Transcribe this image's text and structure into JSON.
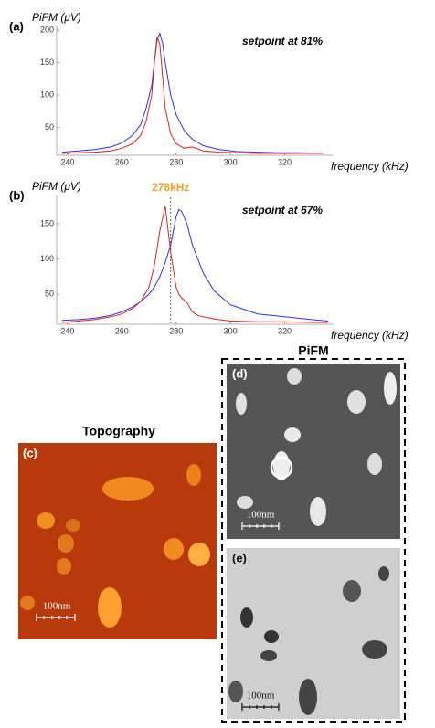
{
  "chart_data": [
    {
      "type": "line",
      "panel": "(a)",
      "ylabel": "PiFM (μV)",
      "title": "setpoint at 81%",
      "xlabel": "frequency (kHz)",
      "x": [
        238,
        244,
        250,
        256,
        260,
        264,
        267,
        269,
        271,
        272,
        273,
        274,
        275,
        276,
        278,
        280,
        283,
        286,
        290,
        296,
        302,
        310,
        318,
        326,
        334
      ],
      "series": [
        {
          "color": "#3030e0",
          "values": [
            12,
            14,
            16,
            20,
            26,
            38,
            55,
            80,
            115,
            150,
            185,
            195,
            180,
            150,
            100,
            70,
            45,
            32,
            22,
            16,
            13,
            12,
            11,
            11,
            10
          ]
        },
        {
          "color": "#e02020",
          "values": [
            10,
            11,
            12,
            14,
            18,
            25,
            38,
            60,
            100,
            150,
            190,
            178,
            130,
            80,
            40,
            25,
            18,
            20,
            14,
            12,
            11,
            10,
            10,
            10,
            10
          ]
        }
      ],
      "xlim": [
        236,
        338
      ],
      "ylim": [
        10,
        200
      ],
      "xticks": [
        240,
        260,
        280,
        300,
        320
      ],
      "yticks": [
        50,
        100,
        150,
        200
      ]
    },
    {
      "type": "line",
      "panel": "(b)",
      "ylabel": "PiFM (μV)",
      "title": "setpoint at 67%",
      "xlabel": "frequency (kHz)",
      "x": [
        238,
        244,
        250,
        256,
        260,
        264,
        267,
        270,
        272,
        274,
        276,
        278,
        280,
        281,
        282,
        284,
        286,
        288,
        290,
        294,
        300,
        310,
        320,
        330,
        336
      ],
      "series": [
        {
          "color": "#3030e0",
          "values": [
            13,
            14,
            16,
            20,
            25,
            32,
            40,
            50,
            60,
            75,
            95,
            120,
            160,
            170,
            168,
            150,
            120,
            100,
            80,
            55,
            35,
            22,
            18,
            14,
            12
          ]
        },
        {
          "color": "#e02020",
          "values": [
            10,
            12,
            14,
            18,
            22,
            30,
            40,
            60,
            90,
            140,
            175,
            110,
            60,
            50,
            45,
            38,
            25,
            20,
            18,
            15,
            12,
            11,
            11,
            10,
            10
          ]
        }
      ],
      "annotation": {
        "x": 278,
        "label": "278kHz",
        "color": "#f0a020"
      },
      "xlim": [
        236,
        338
      ],
      "ylim": [
        10,
        185
      ],
      "xticks": [
        240,
        260,
        280,
        300,
        320
      ],
      "yticks": [
        50,
        100,
        150
      ]
    }
  ],
  "images": {
    "pifm_title": "PiFM",
    "topography_title": "Topography",
    "c": {
      "label": "(c)",
      "scale": "100nm"
    },
    "d": {
      "label": "(d)",
      "scale": "100nm"
    },
    "e": {
      "label": "(e)",
      "scale": "100nm"
    }
  }
}
